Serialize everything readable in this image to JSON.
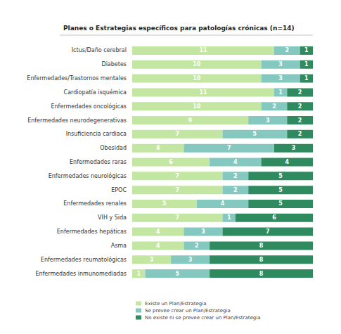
{
  "chart_data": {
    "type": "bar",
    "title": "Planes o Estrategias específicos para patologías crónicas (n=14)",
    "orientation": "horizontal",
    "stacked": true,
    "data_labels": true,
    "tick_labels": "y",
    "grid": false,
    "legend": "bottom",
    "xlim": [
      0,
      14
    ],
    "categories": [
      "Ictus/Daño cerebral",
      "Diabetes",
      "Enfermedades/Trastornos mentales",
      "Cardiopatía isquémica",
      "Enfermedades oncológicas",
      "Enfermedades neurodegenerativas",
      "Insuficiencia cardiaca",
      "Obesidad",
      "Enfermedades raras",
      "Enfermedades neurológicas",
      "EPOC",
      "Enfermedades renales",
      "VIH y Sida",
      "Enfermedades hepáticas",
      "Asma",
      "Enfermedades reumatológicas",
      "Enfermedades inmunomediadas"
    ],
    "series": [
      {
        "name": "Existe un Plan/Estrategia",
        "color": "#c3e6a2",
        "values": [
          11,
          10,
          10,
          11,
          10,
          9,
          7,
          4,
          6,
          7,
          7,
          5,
          7,
          4,
          4,
          3,
          1
        ]
      },
      {
        "name": "Se prevee crear un Plan/Estrategia",
        "color": "#85c8bf",
        "values": [
          2,
          3,
          3,
          1,
          2,
          3,
          5,
          7,
          4,
          2,
          2,
          4,
          1,
          3,
          2,
          3,
          5
        ]
      },
      {
        "name": "No existe ni se prevee crear un Plan/Estrategia",
        "color": "#2f8a5f",
        "values": [
          1,
          1,
          1,
          2,
          2,
          2,
          2,
          3,
          4,
          5,
          5,
          5,
          6,
          7,
          8,
          8,
          8
        ]
      }
    ]
  }
}
